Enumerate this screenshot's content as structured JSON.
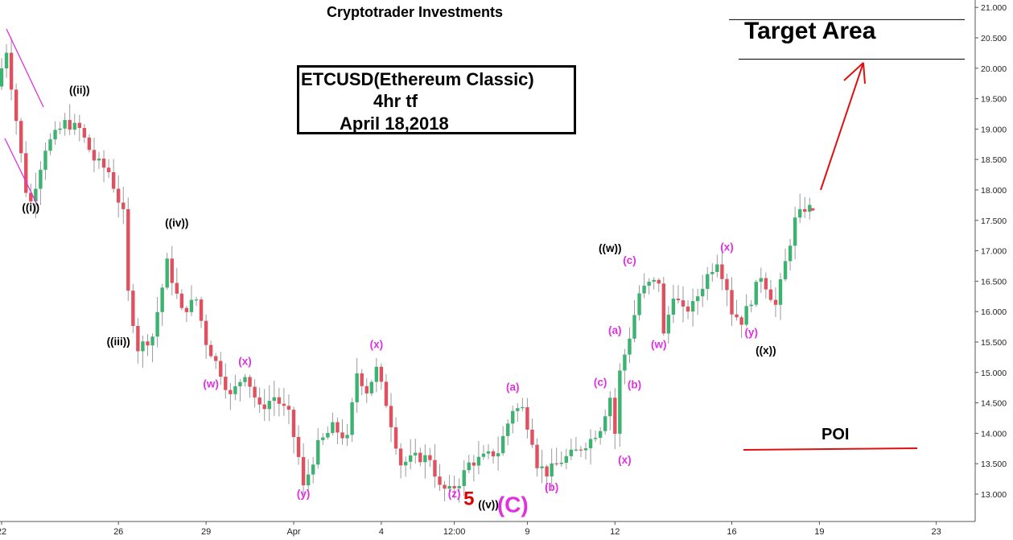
{
  "header": {
    "title": "Cryptotrader Investments"
  },
  "info_box": {
    "line1": "ETCUSD(Ethereum Classic)",
    "line2": "4hr tf",
    "line3": "April 18,2018"
  },
  "target": {
    "label": "Target Area",
    "upper": 20.8,
    "lower": 20.15
  },
  "poi": {
    "label": "POI",
    "level": 13.75
  },
  "colors": {
    "up": "#3cb371",
    "down": "#e0505e",
    "wave_black": "#000000",
    "wave_magenta": "#e030e0",
    "wave_red": "#e00000",
    "arrow": "#e01010",
    "channel": "#e030e0"
  },
  "chart_data": {
    "type": "candlestick",
    "title": "Cryptotrader Investments",
    "ylim": [
      12.75,
      21.1
    ],
    "xlim": [
      0,
      240
    ],
    "y_ticks": [
      "13.000",
      "13.500",
      "14.000",
      "14.500",
      "15.000",
      "15.500",
      "16.000",
      "16.500",
      "17.000",
      "17.500",
      "18.000",
      "18.500",
      "19.000",
      "19.500",
      "20.000",
      "20.500",
      "21.000"
    ],
    "y_tick_values": [
      13,
      13.5,
      14,
      14.5,
      15,
      15.5,
      16,
      16.5,
      17,
      17.5,
      18,
      18.5,
      19,
      19.5,
      20,
      20.5,
      21
    ],
    "x_ticks": [
      {
        "label": "22",
        "index": 0
      },
      {
        "label": "26",
        "index": 24
      },
      {
        "label": "29",
        "index": 42
      },
      {
        "label": "Apr",
        "index": 60
      },
      {
        "label": "4",
        "index": 78
      },
      {
        "label": "12:00",
        "index": 93
      },
      {
        "label": "9",
        "index": 108
      },
      {
        "label": "12",
        "index": 126
      },
      {
        "label": "16",
        "index": 150
      },
      {
        "label": "19",
        "index": 168
      },
      {
        "label": "23",
        "index": 192
      }
    ],
    "anchors": [
      [
        0,
        19.7
      ],
      [
        2,
        20.3
      ],
      [
        6,
        18.0
      ],
      [
        7,
        17.8
      ],
      [
        10,
        18.7
      ],
      [
        14,
        19.1
      ],
      [
        17,
        19.0
      ],
      [
        20,
        18.5
      ],
      [
        23,
        18.3
      ],
      [
        26,
        17.6
      ],
      [
        27,
        16.3
      ],
      [
        29,
        15.4
      ],
      [
        32,
        15.6
      ],
      [
        35,
        16.8
      ],
      [
        38,
        16.0
      ],
      [
        41,
        16.2
      ],
      [
        43,
        15.5
      ],
      [
        46,
        15.0
      ],
      [
        48,
        14.6
      ],
      [
        51,
        15.0
      ],
      [
        54,
        14.4
      ],
      [
        57,
        14.6
      ],
      [
        60,
        14.3
      ],
      [
        62,
        13.6
      ],
      [
        63,
        13.1
      ],
      [
        66,
        13.8
      ],
      [
        69,
        14.1
      ],
      [
        72,
        13.9
      ],
      [
        74,
        15.0
      ],
      [
        76,
        14.7
      ],
      [
        78,
        15.05
      ],
      [
        80,
        14.5
      ],
      [
        83,
        13.5
      ],
      [
        86,
        13.6
      ],
      [
        89,
        13.6
      ],
      [
        91,
        13.1
      ],
      [
        93,
        13.05
      ],
      [
        95,
        13.2
      ],
      [
        97,
        13.5
      ],
      [
        100,
        13.6
      ],
      [
        103,
        13.7
      ],
      [
        106,
        14.4
      ],
      [
        108,
        14.4
      ],
      [
        110,
        13.9
      ],
      [
        111,
        13.5
      ],
      [
        113,
        13.35
      ],
      [
        116,
        13.55
      ],
      [
        119,
        13.7
      ],
      [
        122,
        13.9
      ],
      [
        124,
        14.1
      ],
      [
        126,
        14.6
      ],
      [
        127,
        14.0
      ],
      [
        128,
        15.0
      ],
      [
        130,
        15.6
      ],
      [
        132,
        16.3
      ],
      [
        134,
        16.45
      ],
      [
        136,
        16.5
      ],
      [
        137,
        15.6
      ],
      [
        139,
        16.3
      ],
      [
        141,
        16.0
      ],
      [
        143,
        16.1
      ],
      [
        146,
        16.6
      ],
      [
        148,
        16.85
      ],
      [
        150,
        16.4
      ],
      [
        151,
        16.0
      ],
      [
        153,
        15.85
      ],
      [
        155,
        16.2
      ],
      [
        157,
        16.6
      ],
      [
        160,
        16.1
      ],
      [
        162,
        16.8
      ],
      [
        164,
        17.5
      ],
      [
        166,
        17.7
      ]
    ],
    "candles_per_day": 6,
    "current_price": 17.68,
    "annotations": [
      {
        "text": "((i))",
        "x": 6,
        "y": 17.65,
        "color": "black"
      },
      {
        "text": "((ii))",
        "x": 16,
        "y": 19.58,
        "color": "black"
      },
      {
        "text": "((iii))",
        "x": 24,
        "y": 15.45,
        "color": "black"
      },
      {
        "text": "((iv))",
        "x": 36,
        "y": 17.4,
        "color": "black"
      },
      {
        "text": "(w)",
        "x": 43,
        "y": 14.75,
        "color": "magenta"
      },
      {
        "text": "(x)",
        "x": 50,
        "y": 15.12,
        "color": "magenta"
      },
      {
        "text": "(y)",
        "x": 62,
        "y": 12.95,
        "color": "magenta"
      },
      {
        "text": "(x)",
        "x": 77,
        "y": 15.4,
        "color": "magenta"
      },
      {
        "text": "(z)",
        "x": 93,
        "y": 12.95,
        "color": "magenta"
      },
      {
        "text": "((v))",
        "x": 100,
        "y": 12.77,
        "color": "black"
      },
      {
        "text": "(a)",
        "x": 105,
        "y": 14.7,
        "color": "magenta"
      },
      {
        "text": "(b)",
        "x": 113,
        "y": 13.05,
        "color": "magenta"
      },
      {
        "text": "(x)",
        "x": 128,
        "y": 13.5,
        "color": "magenta"
      },
      {
        "text": "(c)",
        "x": 123,
        "y": 14.78,
        "color": "magenta"
      },
      {
        "text": "(b)",
        "x": 130,
        "y": 14.74,
        "color": "magenta"
      },
      {
        "text": "(a)",
        "x": 126,
        "y": 15.63,
        "color": "magenta"
      },
      {
        "text": "((w))",
        "x": 125,
        "y": 16.98,
        "color": "black"
      },
      {
        "text": "(c)",
        "x": 129,
        "y": 16.78,
        "color": "magenta"
      },
      {
        "text": "(w)",
        "x": 135,
        "y": 15.4,
        "color": "magenta"
      },
      {
        "text": "(x)",
        "x": 149,
        "y": 17.0,
        "color": "magenta"
      },
      {
        "text": "(y)",
        "x": 154,
        "y": 15.6,
        "color": "magenta"
      },
      {
        "text": "((x))",
        "x": 157,
        "y": 15.3,
        "color": "black"
      }
    ],
    "big_labels": [
      {
        "text": "5",
        "x": 96,
        "y": 12.82,
        "color": "red"
      },
      {
        "text": "(C)",
        "x": 105,
        "y": 12.7,
        "color": "magenta"
      }
    ]
  }
}
